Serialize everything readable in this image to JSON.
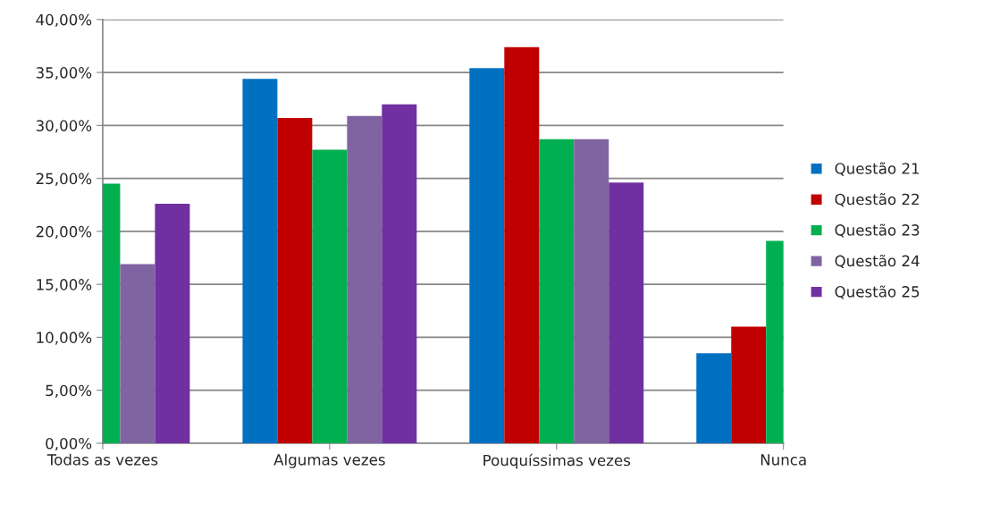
{
  "chart_data": {
    "type": "bar",
    "categories": [
      "Todas as vezes",
      "Algumas vezes",
      "Pouquíssimas vezes",
      "Nunca"
    ],
    "series": [
      {
        "name": "Questão 21",
        "color": "#0070c0",
        "values": [
          null,
          34.4,
          35.4,
          8.5
        ]
      },
      {
        "name": "Questão 22",
        "color": "#c00000",
        "values": [
          null,
          30.7,
          37.4,
          11.0
        ]
      },
      {
        "name": "Questão 23",
        "color": "#00b050",
        "values": [
          24.5,
          27.7,
          28.7,
          19.1
        ]
      },
      {
        "name": "Questão 24",
        "color": "#8064a2",
        "values": [
          16.9,
          30.9,
          28.7,
          null
        ]
      },
      {
        "name": "Questão 25",
        "color": "#7030a0",
        "values": [
          22.6,
          32.0,
          24.6,
          null
        ]
      }
    ],
    "ylim": [
      0,
      40
    ],
    "yticks": [
      {
        "value": 0,
        "label": "0,00%"
      },
      {
        "value": 5,
        "label": "5,00%"
      },
      {
        "value": 10,
        "label": "10,00%"
      },
      {
        "value": 15,
        "label": "15,00%"
      },
      {
        "value": 20,
        "label": "20,00%"
      },
      {
        "value": 25,
        "label": "25,00%"
      },
      {
        "value": 30,
        "label": "30,00%"
      },
      {
        "value": 35,
        "label": "35,00%"
      },
      {
        "value": 40,
        "label": "40,00%"
      }
    ],
    "grid": "y",
    "legend": "right"
  }
}
